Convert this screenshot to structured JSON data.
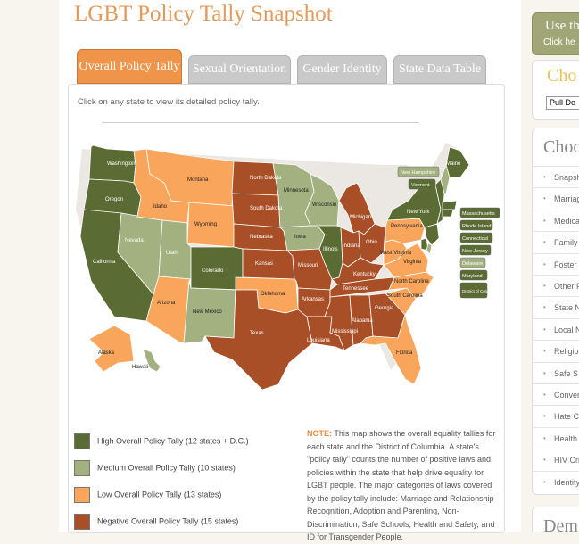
{
  "page": {
    "title": "LGBT Policy Tally Snapshot"
  },
  "tabs": [
    {
      "label": "Overall Policy Tally",
      "active": true
    },
    {
      "label": "Sexual Orientation",
      "active": false
    },
    {
      "label": "Gender Identity",
      "active": false
    },
    {
      "label": "State Data Table",
      "active": false
    }
  ],
  "instructions": "Click on any state to view its detailed policy tally.",
  "colors": {
    "high": "#5a6b33",
    "medium": "#a3b07f",
    "low": "#f9a55c",
    "negative": "#a94f27",
    "accent": "#f09449"
  },
  "map_labels": {
    "washington": "Washington",
    "oregon": "Oregon",
    "california": "California",
    "nevada": "Nevada",
    "idaho": "Idaho",
    "montana": "Montana",
    "wyoming": "Wyoming",
    "utah": "Utah",
    "arizona": "Arizona",
    "colorado": "Colorado",
    "new_mexico": "New Mexico",
    "north_dakota": "North Dakota",
    "south_dakota": "South Dakota",
    "nebraska": "Nebraska",
    "kansas": "Kansas",
    "oklahoma": "Oklahoma",
    "texas": "Texas",
    "minnesota": "Minnesota",
    "iowa": "Iowa",
    "missouri": "Missouri",
    "arkansas": "Arkansas",
    "louisiana": "Louisiana",
    "wisconsin": "Wisconsin",
    "illinois": "Illinois",
    "michigan": "Michigan",
    "indiana": "Indiana",
    "ohio": "Ohio",
    "kentucky": "Kentucky",
    "tennessee": "Tennessee",
    "mississippi": "Mississippi",
    "alabama": "Alabama",
    "georgia": "Georgia",
    "florida": "Florida",
    "south_carolina": "South Carolina",
    "north_carolina": "North Carolina",
    "virginia": "Virginia",
    "west_virginia": "West Virginia",
    "pennsylvania": "Pennsylvania",
    "new_york": "New York",
    "maine": "Maine",
    "alaska": "Alaska",
    "hawaii": "Hawaii"
  },
  "map_callouts": {
    "new_hampshire": "New Hampshire",
    "vermont": "Vermont",
    "massachusetts": "Massachusetts",
    "rhode_island": "Rhode Island",
    "connecticut": "Connecticut",
    "new_jersey": "New Jersey",
    "delaware": "Delaware",
    "maryland": "Maryland",
    "dc": "District of Columbia"
  },
  "legend": [
    {
      "label": "High Overall Policy Tally (12 states + D.C.)",
      "color": "#5a6b33"
    },
    {
      "label": "Medium Overall Policy Tally (10 states)",
      "color": "#a3b07f"
    },
    {
      "label": "Low Overall Policy Tally (13 states)",
      "color": "#f9a55c"
    },
    {
      "label": "Negative Overall Policy Tally (15 states)",
      "color": "#a94f27"
    }
  ],
  "note": {
    "label": "NOTE:",
    "text": "This map shows the overall equality tallies for each state and the District of Columbia. A state's \"policy tally\" counts the number of positive laws and policies within the state that help drive equality for LGBT people. The major categories of laws covered by the policy tally include: Marriage and Relationship Recognition, Adoption and Parenting, Non-Discrimination, Safe Schools, Health and Safety, and ID for Transgender People."
  },
  "sidebar": {
    "use_box": {
      "title": "Use th",
      "subtitle": "Click he"
    },
    "choose_box": {
      "title": "Cho",
      "select_value": "Pull Do"
    },
    "list_box": {
      "title": "Choo",
      "items": [
        "Snapsh",
        "Marriag",
        "Medica",
        "Family",
        "Foster",
        "Other F",
        "State N",
        "Local N",
        "Religio",
        "Safe S",
        "Conver",
        "Hate C",
        "Health",
        "HIV Cri",
        "Identity"
      ]
    },
    "bottom_box": {
      "title": "Dem"
    }
  }
}
